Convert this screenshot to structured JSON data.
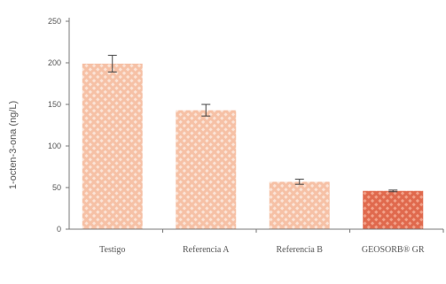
{
  "chart_data": {
    "type": "bar",
    "title": "",
    "xlabel": "",
    "ylabel": "1-octen-3-ona (ng/L)",
    "ylim": [
      0,
      250
    ],
    "yticks": [
      0,
      50,
      100,
      150,
      200,
      250
    ],
    "categories": [
      "Testigo",
      "Referencia A",
      "Referencia B",
      "GEOSORB® GR"
    ],
    "values": [
      199,
      143,
      57,
      46
    ],
    "errors": [
      10,
      7,
      3,
      1
    ],
    "bar_colors": [
      "#f6c1a6",
      "#f6c1a6",
      "#f6c1a6",
      "#e06a4e"
    ],
    "bar_pattern_colors": [
      "#fbe3d6",
      "#fbe3d6",
      "#fbe3d6",
      "#f2a189"
    ],
    "grid": false,
    "legend": "none"
  }
}
